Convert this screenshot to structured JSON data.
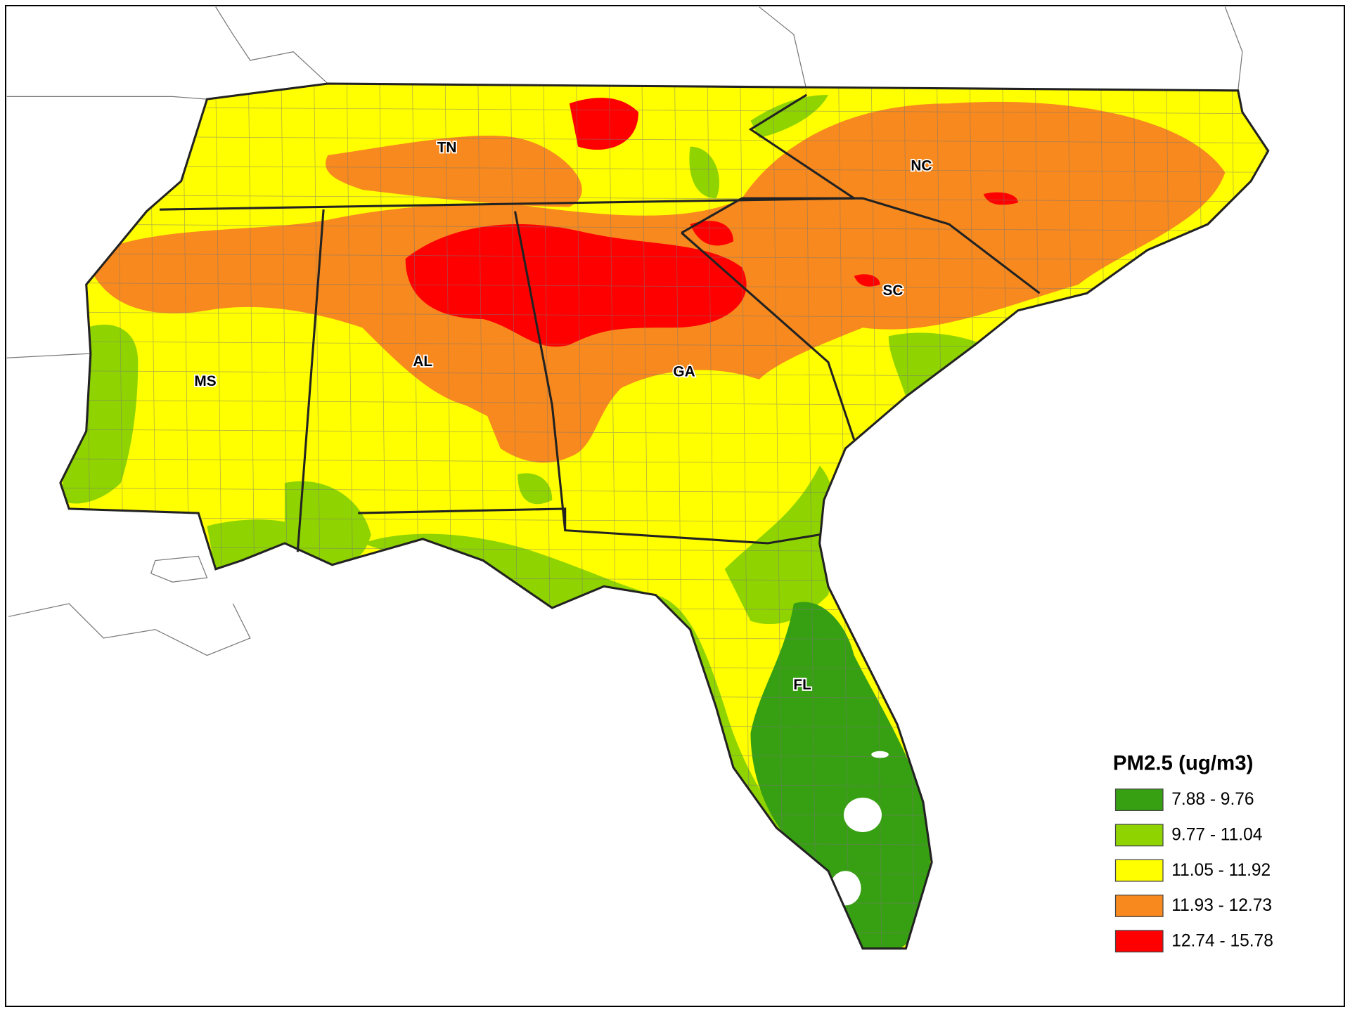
{
  "map": {
    "labels": [
      "TN",
      "NC",
      "MS",
      "AL",
      "GA",
      "SC",
      "FL"
    ],
    "legend": {
      "title": "PM2.5 (ug/m3)",
      "items": [
        {
          "label": "7.88 - 9.76",
          "color": "#37a012"
        },
        {
          "label": "9.77 - 11.04",
          "color": "#8fd400"
        },
        {
          "label": "11.05 - 11.92",
          "color": "#ffff00"
        },
        {
          "label": "11.93 - 12.73",
          "color": "#f7891e"
        },
        {
          "label": "12.74 - 15.78",
          "color": "#ff0000"
        }
      ]
    }
  }
}
